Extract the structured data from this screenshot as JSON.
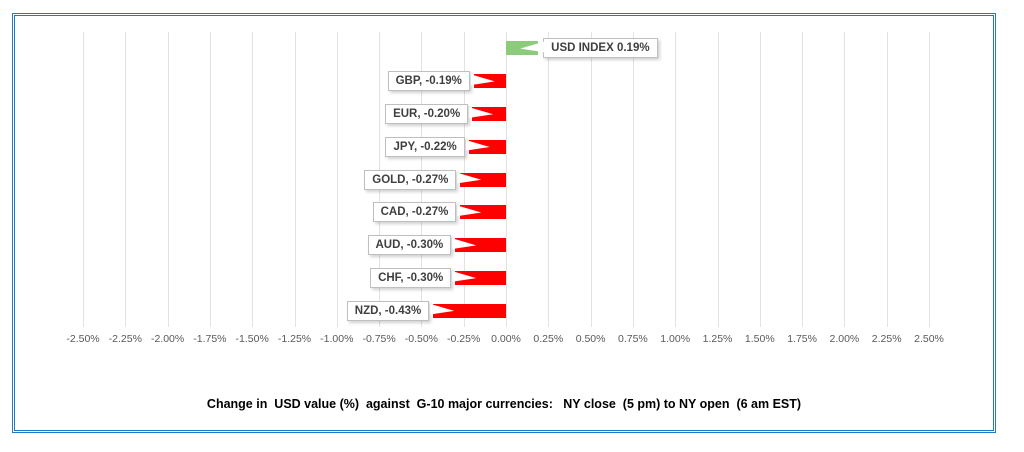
{
  "chart_data": {
    "type": "bar",
    "orientation": "horizontal",
    "title": "Change in  USD value (%)  against  G-10 major currencies:   NY close  (5 pm) to NY open  (6 am EST)",
    "categories": [
      "USD INDEX",
      "GBP",
      "EUR",
      "JPY",
      "GOLD",
      "CAD",
      "AUD",
      "CHF",
      "NZD"
    ],
    "values": [
      0.19,
      -0.19,
      -0.2,
      -0.22,
      -0.27,
      -0.27,
      -0.3,
      -0.3,
      -0.43
    ],
    "data_labels": [
      "USD INDEX 0.19%",
      "GBP, -0.19%",
      "EUR, -0.20%",
      "JPY, -0.22%",
      "GOLD, -0.27%",
      "CAD, -0.27%",
      "AUD, -0.30%",
      "CHF, -0.30%",
      "NZD, -0.43%"
    ],
    "x_ticks": [
      "-2.50%",
      "-2.25%",
      "-2.00%",
      "-1.75%",
      "-1.50%",
      "-1.25%",
      "-1.00%",
      "-0.75%",
      "-0.50%",
      "-0.25%",
      "0.00%",
      "0.25%",
      "0.50%",
      "0.75%",
      "1.00%",
      "1.25%",
      "1.50%",
      "1.75%",
      "2.00%",
      "2.25%",
      "2.50%"
    ],
    "xlim": [
      -2.5,
      2.5
    ],
    "grid": "vertical",
    "legend": "none",
    "colors": {
      "positive_bar": "#8dcb7c",
      "negative_bar": "#ff0000",
      "gridline": "#e2e2e2",
      "frame_border": "#1f7bc6",
      "tick_text": "#595959",
      "label_text": "#3f3f3f",
      "title_text": "#000000"
    }
  }
}
